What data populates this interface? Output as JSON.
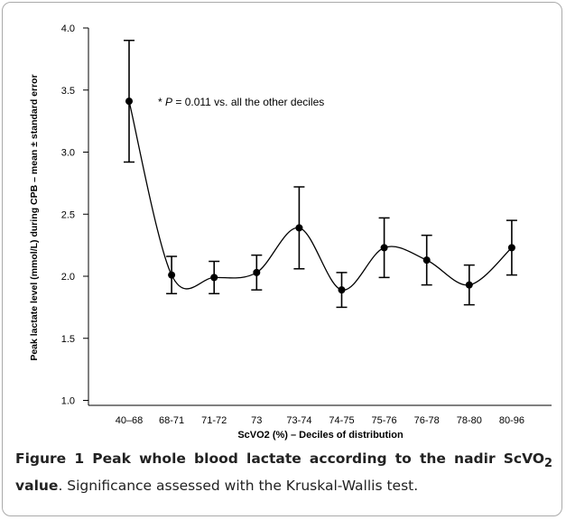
{
  "chart_data": {
    "type": "line",
    "annotation": [
      "* ",
      "P",
      " = 0.011 vs. all the other deciles"
    ],
    "xlabel": "ScVO2 (%) – Deciles of distribution",
    "ylabel": "Peak lactate level (mmol/L) during CPB – mean ± standard error",
    "categories": [
      "40–68",
      "68-71",
      "71-72",
      "73",
      "73-74",
      "74-75",
      "75-76",
      "76-78",
      "78-80",
      "80-96"
    ],
    "values": [
      3.41,
      2.01,
      1.99,
      2.03,
      2.39,
      1.89,
      2.23,
      2.13,
      1.93,
      2.23
    ],
    "errors": [
      0.49,
      0.15,
      0.13,
      0.14,
      0.33,
      0.14,
      0.24,
      0.2,
      0.16,
      0.22
    ],
    "color": "#000000",
    "smooth": true,
    "ylim": [
      0.96,
      4.0
    ],
    "yticks": [
      {
        "value": 1,
        "label": "1.0"
      },
      {
        "value": 1.5,
        "label": "1.5"
      },
      {
        "value": 2,
        "label": "2.0"
      },
      {
        "value": 2.5,
        "label": "2.5"
      },
      {
        "value": 3,
        "label": "3.0"
      },
      {
        "value": 3.5,
        "label": "3.5"
      },
      {
        "value": 4,
        "label": "4.0"
      }
    ]
  },
  "caption": {
    "bold": "Figure 1 Peak whole blood lactate according to the nadir ScVO",
    "bold_sub": "2",
    "bold_end": " value",
    "text": ". Significance assessed with the Kruskal-Wallis test."
  }
}
